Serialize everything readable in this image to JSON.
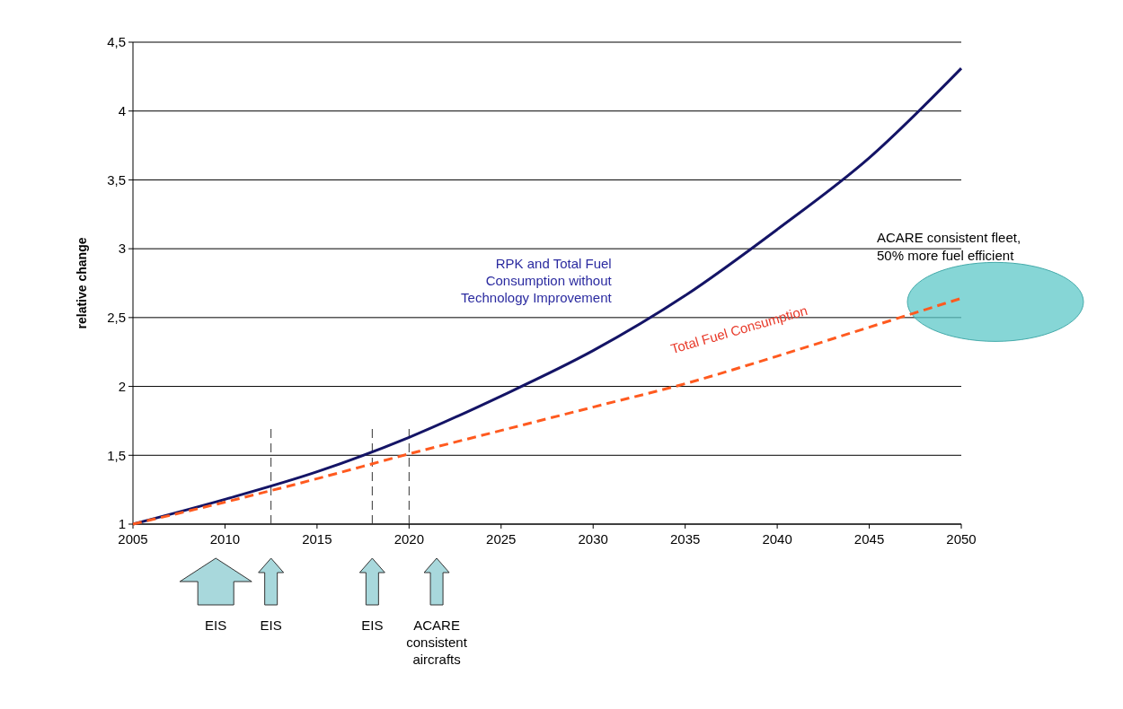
{
  "chart_data": {
    "type": "line",
    "ylabel": "relative change",
    "x": [
      2005,
      2010,
      2015,
      2020,
      2025,
      2030,
      2035,
      2040,
      2045,
      2050
    ],
    "series": [
      {
        "name": "RPK and Total Fuel Consumption without Technology Improvement",
        "color": "#141466",
        "values": [
          1,
          1.18,
          1.38,
          1.63,
          1.93,
          2.26,
          2.66,
          3.14,
          3.66,
          4.31
        ],
        "line_style": "solid"
      },
      {
        "name": "Total Fuel Consumption",
        "color": "#ff5a1f",
        "values": [
          1,
          1.16,
          1.33,
          1.51,
          1.68,
          1.85,
          2.02,
          2.22,
          2.43,
          2.64
        ],
        "line_style": "dashed"
      }
    ],
    "xlim": [
      2005,
      2050
    ],
    "xticks": [
      2005,
      2010,
      2015,
      2020,
      2025,
      2030,
      2035,
      2040,
      2045,
      2050
    ],
    "ylim": [
      1,
      4.5
    ],
    "yticks": [
      1,
      {
        "value": 1.5,
        "label": "1,5"
      },
      2,
      {
        "value": 2.5,
        "label": "2,5"
      },
      3,
      {
        "value": 3.5,
        "label": "3,5"
      },
      4,
      {
        "value": 4.5,
        "label": "4,5"
      }
    ],
    "grid": "y",
    "legend": false,
    "marker": "none",
    "ref_lines": [
      {
        "axis": "x",
        "value": 2012.5,
        "color": "#333333",
        "line_style": "dashed"
      },
      {
        "axis": "x",
        "value": 2018,
        "color": "#333333",
        "line_style": "dashed"
      },
      {
        "axis": "x",
        "value": 2020,
        "color": "#333333",
        "line_style": "dashed"
      }
    ],
    "annotations": [
      "EIS",
      "EIS",
      "EIS",
      "ACARE consistent aircrafts",
      {
        "text": "ACARE consistent fleet, 50% more fuel efficient",
        "x": 2050,
        "y": 2.64
      }
    ]
  }
}
